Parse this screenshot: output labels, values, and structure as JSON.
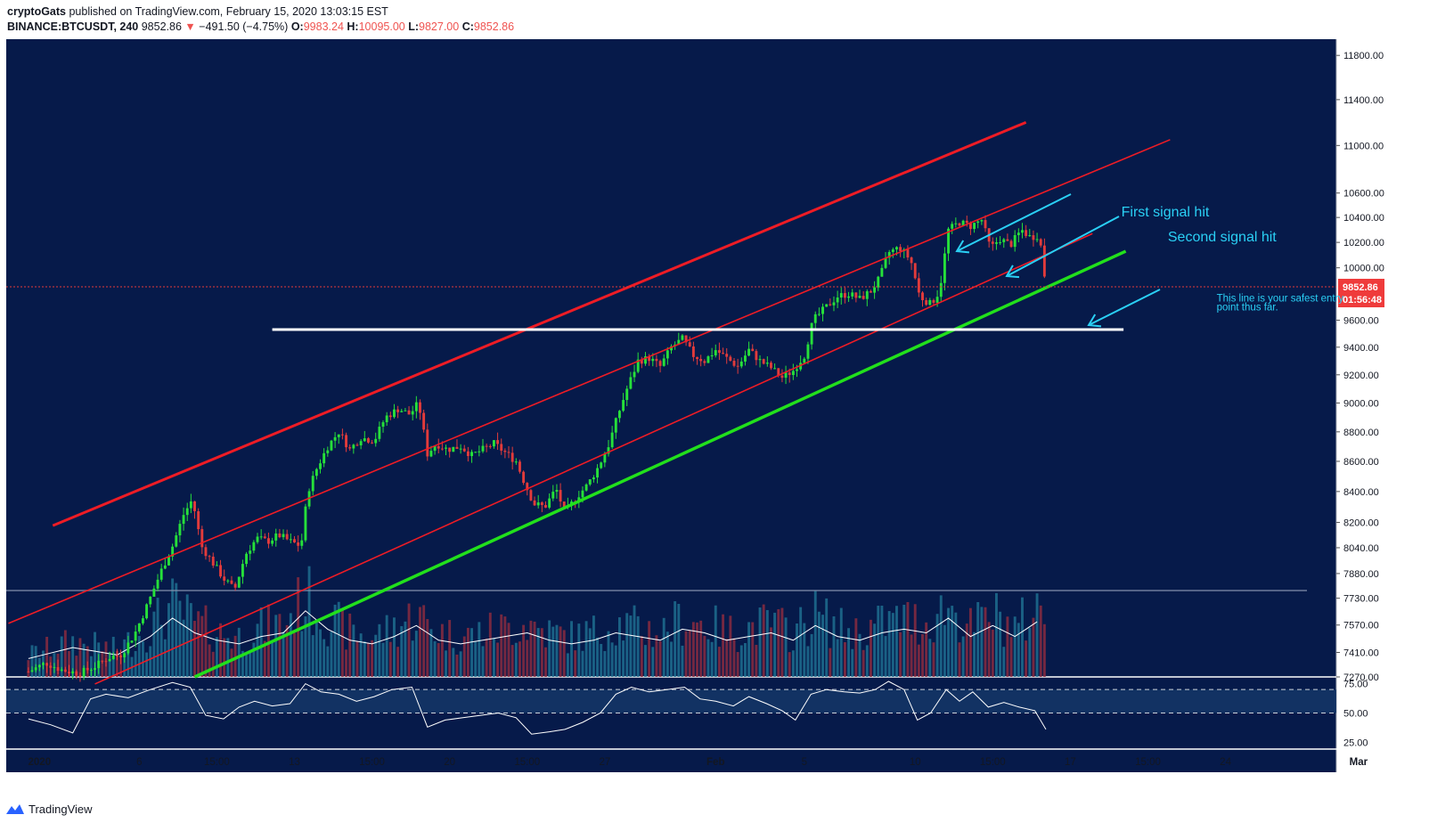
{
  "header": {
    "author": "cryptoGats",
    "published_text": "published on TradingView.com, February 15, 2020 13:03:15 EST",
    "symbol": "BINANCE:BTCUSDT, 240",
    "last": "9852.86",
    "change_arrow": "▼",
    "change": "−491.50 (−4.75%)",
    "o_label": "O:",
    "o_value": "9983.24",
    "h_label": "H:",
    "h_value": "10095.00",
    "l_label": "L:",
    "l_value": "9827.00",
    "c_label": "C:",
    "c_value": "9852.86"
  },
  "colors": {
    "background": "#061a4a",
    "up": "#26e03a",
    "down": "#e23b3b",
    "channel": "#ee1c25",
    "support": "#22e01c",
    "level": "#ffffff",
    "annotation": "#2ad0f5",
    "volume_up": "#1f6f8f",
    "volume_down": "#8a2b40"
  },
  "chart_data": {
    "type": "candlestick",
    "price_axis": {
      "scale": "log",
      "range": [
        7270,
        11950
      ],
      "ticks": [
        "11800.00",
        "11400.00",
        "11000.00",
        "10600.00",
        "10400.00",
        "10200.00",
        "10000.00",
        "9600.00",
        "9400.00",
        "9200.00",
        "9000.00",
        "8800.00",
        "8600.00",
        "8400.00",
        "8200.00",
        "8040.00",
        "7880.00",
        "7730.00",
        "7570.00",
        "7410.00",
        "7270.00"
      ],
      "last_price_label": "9852.86",
      "countdown_label": "01:56:48"
    },
    "time_axis": {
      "range": [
        "2020-01-01",
        "2020-03-01"
      ],
      "ticks": [
        {
          "label": "2020",
          "day": 1.5
        },
        {
          "label": "6",
          "day": 6
        },
        {
          "label": "15:00",
          "day": 9.5
        },
        {
          "label": "13",
          "day": 13
        },
        {
          "label": "15:00",
          "day": 16.5
        },
        {
          "label": "20",
          "day": 20
        },
        {
          "label": "15:00",
          "day": 23.5
        },
        {
          "label": "27",
          "day": 27
        },
        {
          "label": "Feb",
          "day": 32
        },
        {
          "label": "5",
          "day": 36
        },
        {
          "label": "10",
          "day": 41
        },
        {
          "label": "15:00",
          "day": 44.5
        },
        {
          "label": "17",
          "day": 48
        },
        {
          "label": "15:00",
          "day": 51.5
        },
        {
          "label": "24",
          "day": 55
        },
        {
          "label": "Mar",
          "day": 61
        }
      ]
    },
    "price_path": [
      [
        1.0,
        7300
      ],
      [
        1.8,
        7350
      ],
      [
        2.5,
        7310
      ],
      [
        3.3,
        7290
      ],
      [
        4.0,
        7330
      ],
      [
        4.6,
        7380
      ],
      [
        5.2,
        7400
      ],
      [
        5.8,
        7520
      ],
      [
        6.4,
        7700
      ],
      [
        7.0,
        7900
      ],
      [
        7.5,
        8050
      ],
      [
        8.0,
        8250
      ],
      [
        8.4,
        8350
      ],
      [
        8.8,
        8050
      ],
      [
        9.3,
        7950
      ],
      [
        9.8,
        7850
      ],
      [
        10.3,
        7780
      ],
      [
        10.8,
        8000
      ],
      [
        11.3,
        8100
      ],
      [
        11.8,
        8080
      ],
      [
        12.3,
        8120
      ],
      [
        12.8,
        8080
      ],
      [
        13.3,
        8050
      ],
      [
        13.6,
        8400
      ],
      [
        14.0,
        8550
      ],
      [
        14.5,
        8700
      ],
      [
        15.0,
        8800
      ],
      [
        15.5,
        8680
      ],
      [
        16.0,
        8760
      ],
      [
        16.6,
        8740
      ],
      [
        17.1,
        8900
      ],
      [
        17.7,
        8960
      ],
      [
        18.2,
        8920
      ],
      [
        18.6,
        9000
      ],
      [
        19.0,
        8650
      ],
      [
        19.4,
        8720
      ],
      [
        19.9,
        8680
      ],
      [
        20.5,
        8700
      ],
      [
        21.0,
        8640
      ],
      [
        21.5,
        8680
      ],
      [
        22.0,
        8720
      ],
      [
        22.5,
        8660
      ],
      [
        23.0,
        8600
      ],
      [
        23.4,
        8450
      ],
      [
        23.8,
        8320
      ],
      [
        24.3,
        8300
      ],
      [
        24.8,
        8420
      ],
      [
        25.2,
        8260
      ],
      [
        25.7,
        8360
      ],
      [
        26.2,
        8440
      ],
      [
        26.7,
        8560
      ],
      [
        27.2,
        8720
      ],
      [
        27.6,
        8920
      ],
      [
        28.0,
        9100
      ],
      [
        28.5,
        9300
      ],
      [
        29.0,
        9320
      ],
      [
        29.5,
        9260
      ],
      [
        30.0,
        9400
      ],
      [
        30.5,
        9460
      ],
      [
        31.0,
        9340
      ],
      [
        31.5,
        9300
      ],
      [
        32.0,
        9380
      ],
      [
        32.5,
        9320
      ],
      [
        33.0,
        9260
      ],
      [
        33.5,
        9380
      ],
      [
        34.0,
        9300
      ],
      [
        34.5,
        9250
      ],
      [
        35.0,
        9180
      ],
      [
        35.5,
        9230
      ],
      [
        36.0,
        9340
      ],
      [
        36.4,
        9600
      ],
      [
        37.0,
        9700
      ],
      [
        37.5,
        9780
      ],
      [
        38.0,
        9800
      ],
      [
        38.5,
        9760
      ],
      [
        39.0,
        9820
      ],
      [
        39.4,
        9920
      ],
      [
        39.8,
        10120
      ],
      [
        40.3,
        10160
      ],
      [
        40.8,
        10060
      ],
      [
        41.2,
        9780
      ],
      [
        41.7,
        9720
      ],
      [
        42.1,
        9820
      ],
      [
        42.5,
        10300
      ],
      [
        43.0,
        10360
      ],
      [
        43.5,
        10330
      ],
      [
        44.0,
        10380
      ],
      [
        44.4,
        10150
      ],
      [
        44.8,
        10230
      ],
      [
        45.3,
        10180
      ],
      [
        45.8,
        10300
      ],
      [
        46.2,
        10240
      ],
      [
        46.6,
        10260
      ],
      [
        46.9,
        9852
      ]
    ],
    "volume_series": [
      [
        1.0,
        0.25
      ],
      [
        3.0,
        0.4
      ],
      [
        5.0,
        0.3
      ],
      [
        6.5,
        0.55
      ],
      [
        7.5,
        0.8
      ],
      [
        8.5,
        0.6
      ],
      [
        9.5,
        0.5
      ],
      [
        10.5,
        0.45
      ],
      [
        11.5,
        0.55
      ],
      [
        12.5,
        0.6
      ],
      [
        13.5,
        0.9
      ],
      [
        14.5,
        0.65
      ],
      [
        15.5,
        0.5
      ],
      [
        16.5,
        0.45
      ],
      [
        17.5,
        0.55
      ],
      [
        18.5,
        0.7
      ],
      [
        19.5,
        0.5
      ],
      [
        20.5,
        0.45
      ],
      [
        21.5,
        0.5
      ],
      [
        22.5,
        0.55
      ],
      [
        23.5,
        0.6
      ],
      [
        24.5,
        0.5
      ],
      [
        25.5,
        0.45
      ],
      [
        26.5,
        0.5
      ],
      [
        27.5,
        0.6
      ],
      [
        28.5,
        0.55
      ],
      [
        29.5,
        0.5
      ],
      [
        30.5,
        0.65
      ],
      [
        31.5,
        0.6
      ],
      [
        32.5,
        0.5
      ],
      [
        33.5,
        0.55
      ],
      [
        34.5,
        0.6
      ],
      [
        35.5,
        0.5
      ],
      [
        36.5,
        0.7
      ],
      [
        37.5,
        0.55
      ],
      [
        38.5,
        0.5
      ],
      [
        39.5,
        0.6
      ],
      [
        40.5,
        0.65
      ],
      [
        41.5,
        0.6
      ],
      [
        42.5,
        0.8
      ],
      [
        43.5,
        0.55
      ],
      [
        44.5,
        0.7
      ],
      [
        45.5,
        0.55
      ],
      [
        46.5,
        0.75
      ]
    ],
    "rsi_axis": {
      "range": [
        20,
        80
      ],
      "ticks": [
        "75.00",
        "50.00",
        "25.00"
      ]
    },
    "rsi_series": [
      [
        1.0,
        45
      ],
      [
        2.0,
        40
      ],
      [
        3.0,
        33
      ],
      [
        3.8,
        62
      ],
      [
        4.5,
        66
      ],
      [
        5.5,
        63
      ],
      [
        6.5,
        70
      ],
      [
        7.5,
        76
      ],
      [
        8.3,
        72
      ],
      [
        9.0,
        48
      ],
      [
        9.8,
        45
      ],
      [
        10.5,
        55
      ],
      [
        11.2,
        60
      ],
      [
        12.0,
        56
      ],
      [
        12.8,
        58
      ],
      [
        13.5,
        75
      ],
      [
        14.2,
        68
      ],
      [
        15.0,
        66
      ],
      [
        15.8,
        60
      ],
      [
        16.6,
        64
      ],
      [
        17.4,
        70
      ],
      [
        18.3,
        72
      ],
      [
        19.0,
        38
      ],
      [
        19.8,
        44
      ],
      [
        20.6,
        46
      ],
      [
        21.4,
        48
      ],
      [
        22.2,
        50
      ],
      [
        23.0,
        46
      ],
      [
        23.7,
        32
      ],
      [
        24.5,
        34
      ],
      [
        25.2,
        36
      ],
      [
        26.0,
        42
      ],
      [
        26.8,
        50
      ],
      [
        27.5,
        66
      ],
      [
        28.2,
        72
      ],
      [
        29.0,
        68
      ],
      [
        29.8,
        70
      ],
      [
        30.6,
        72
      ],
      [
        31.3,
        62
      ],
      [
        32.0,
        60
      ],
      [
        32.8,
        56
      ],
      [
        33.5,
        64
      ],
      [
        34.3,
        58
      ],
      [
        35.0,
        52
      ],
      [
        35.6,
        44
      ],
      [
        36.3,
        66
      ],
      [
        37.0,
        70
      ],
      [
        37.8,
        68
      ],
      [
        38.5,
        67
      ],
      [
        39.2,
        70
      ],
      [
        39.8,
        77
      ],
      [
        40.5,
        70
      ],
      [
        41.1,
        44
      ],
      [
        41.7,
        50
      ],
      [
        42.4,
        70
      ],
      [
        43.0,
        60
      ],
      [
        43.6,
        68
      ],
      [
        44.3,
        55
      ],
      [
        45.0,
        59
      ],
      [
        45.7,
        55
      ],
      [
        46.4,
        52
      ],
      [
        46.9,
        36
      ]
    ],
    "drawings": {
      "outer_channel_top": [
        [
          2.1,
          8180
        ],
        [
          46.0,
          11200
        ]
      ],
      "channel_mid_top": [
        [
          0.1,
          7580
        ],
        [
          52.5,
          11050
        ]
      ],
      "channel_mid_bottom": [
        [
          4.0,
          7230
        ],
        [
          49.0,
          10270
        ]
      ],
      "support_line": [
        [
          8.5,
          7270
        ],
        [
          50.5,
          10130
        ]
      ],
      "horizontal_level": [
        [
          12.0,
          9530
        ],
        [
          50.4,
          9530
        ]
      ]
    },
    "annotations": [
      {
        "text": "First signal hit",
        "day": 50.3,
        "price": 10450
      },
      {
        "text": "Second signal hit",
        "day": 52.4,
        "price": 10250
      },
      {
        "text": "This line is your safest entry",
        "day": 54.6,
        "price": 9760
      },
      {
        "text": "point thus far.",
        "day": 54.6,
        "price": 9695
      }
    ]
  },
  "footer": {
    "brand": "TradingView"
  }
}
